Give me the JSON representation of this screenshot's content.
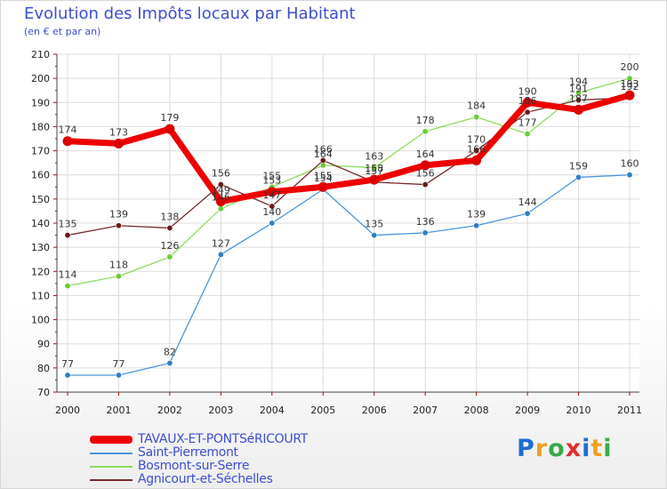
{
  "header": {
    "title": "Evolution des Impôts locaux par Habitant",
    "subtitle": "(en € et par an)"
  },
  "brand": {
    "letters": [
      "P",
      "r",
      "o",
      "x",
      "i",
      "t",
      "i"
    ],
    "colors": [
      "#1f6fd1",
      "#f0a020",
      "#3aa84a",
      "#e03030",
      "#1f6fd1",
      "#f0a020",
      "#3aa84a"
    ]
  },
  "chart_data": {
    "type": "line",
    "title": "Evolution des Impôts locaux par Habitant",
    "subtitle": "(en € et par an)",
    "xlabel": "",
    "ylabel": "",
    "ylim": [
      70,
      210
    ],
    "yticks": [
      70,
      80,
      90,
      100,
      110,
      120,
      130,
      140,
      150,
      160,
      170,
      180,
      190,
      200,
      210
    ],
    "x": [
      "2000",
      "2001",
      "2002",
      "2003",
      "2004",
      "2005",
      "2006",
      "2007",
      "2008",
      "2009",
      "2010",
      "2011"
    ],
    "grid": true,
    "legend_position": "bottom-left",
    "series": [
      {
        "name": "TAVAUX-ET-PONTSéRICOURT",
        "color": "#ee0000",
        "marker": "#dd0000",
        "values": [
          174,
          173,
          179,
          149,
          153,
          155,
          158,
          164,
          166,
          190,
          187,
          193
        ],
        "labels": [
          "174",
          "173",
          "179",
          "149",
          "153",
          "155",
          "158",
          "164",
          "166",
          "190",
          "187",
          "193"
        ],
        "emphasis": true
      },
      {
        "name": "Saint-Pierremont",
        "color": "#4b96d6",
        "marker": "#2f7fc4",
        "values": [
          77,
          77,
          82,
          127,
          140,
          154,
          135,
          136,
          139,
          144,
          159,
          160
        ],
        "labels": [
          "77",
          "77",
          "82",
          "127",
          "140",
          "154",
          "135",
          "136",
          "139",
          "144",
          "159",
          "160"
        ],
        "emphasis": false
      },
      {
        "name": "Bosmont-sur-Serre",
        "color": "#8edc60",
        "marker": "#66cc33",
        "values": [
          114,
          118,
          126,
          146,
          155,
          164,
          163,
          178,
          184,
          177,
          194,
          200
        ],
        "labels": [
          "114",
          "118",
          "126",
          "146",
          "155",
          "164",
          "163",
          "178",
          "184",
          "177",
          "194",
          "200"
        ],
        "emphasis": false
      },
      {
        "name": "Agnicourt-et-Séchelles",
        "color": "#7a2a2a",
        "marker": "#6b1a1a",
        "values": [
          135,
          139,
          138,
          156,
          147,
          166,
          157,
          156,
          170,
          186,
          191,
          192
        ],
        "labels": [
          "135",
          "139",
          "138",
          "156",
          "147",
          "166",
          "157",
          "156",
          "170",
          "186",
          "191",
          "192"
        ],
        "emphasis": false
      }
    ]
  }
}
